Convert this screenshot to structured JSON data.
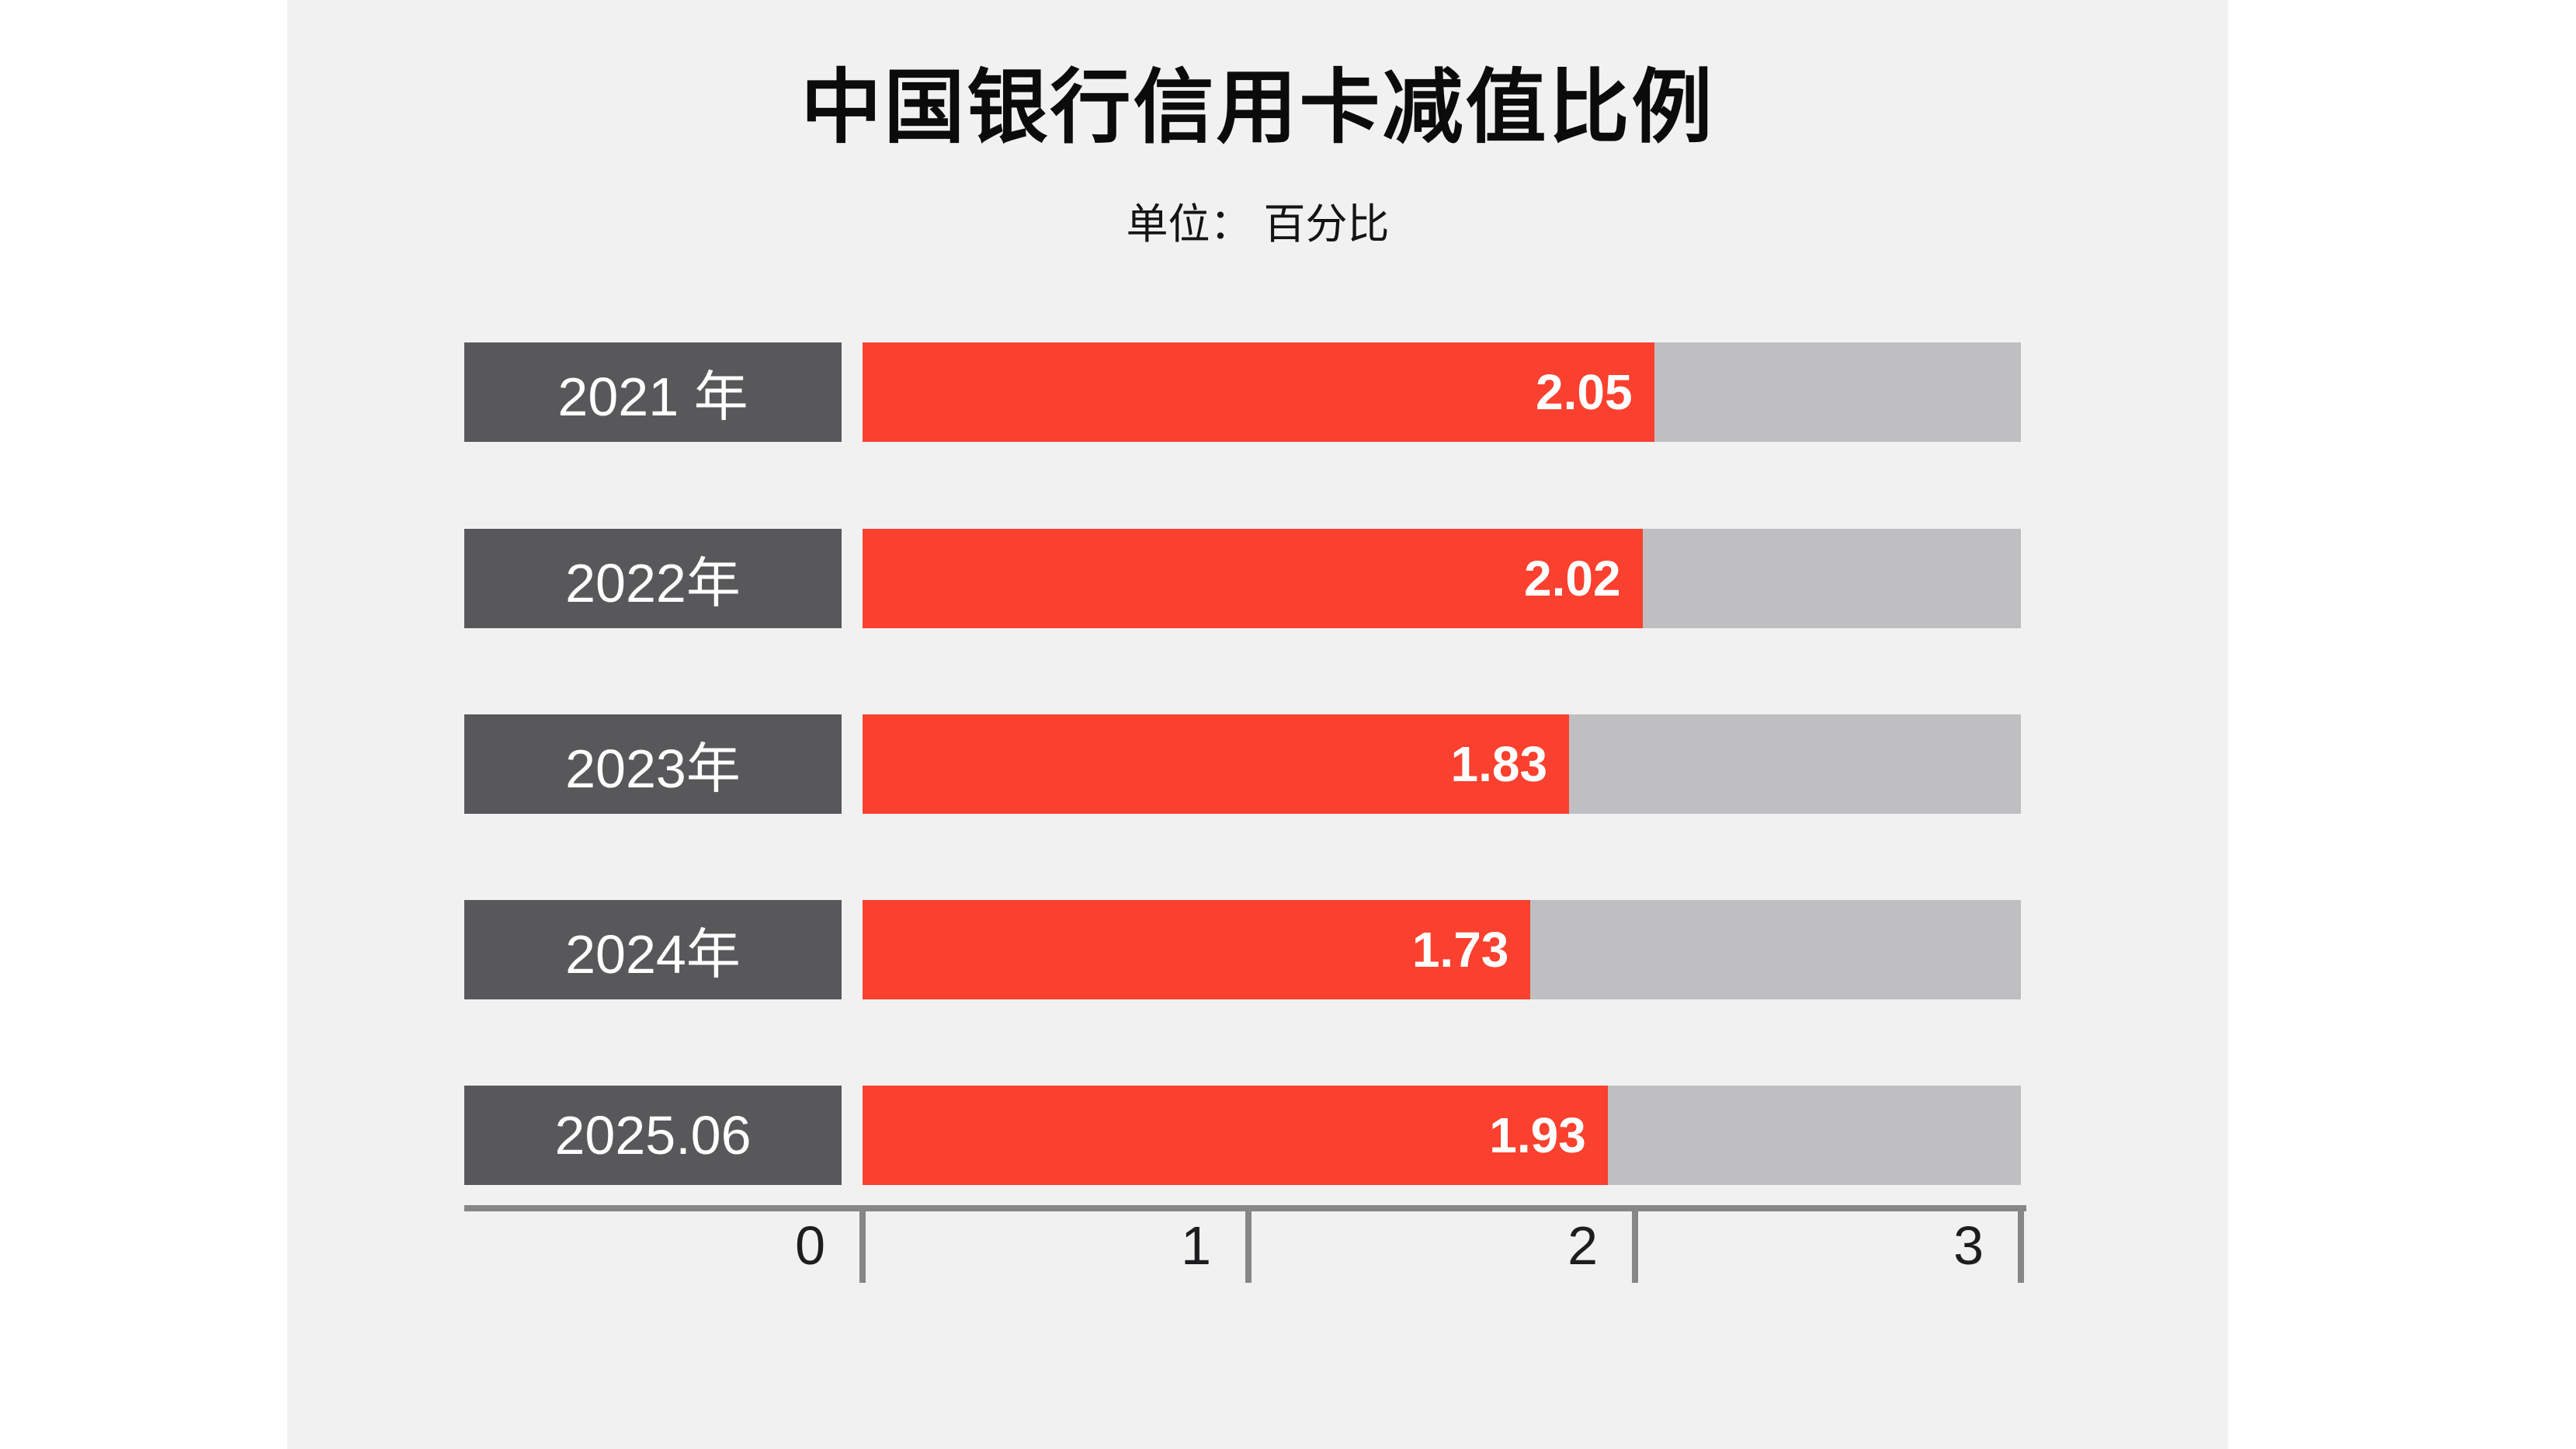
{
  "header": {
    "title": "中国银行信用卡减值比例",
    "subtitle": "单位： 百分比"
  },
  "chart_data": {
    "type": "bar",
    "orientation": "horizontal",
    "title": "中国银行信用卡减值比例",
    "unit_label": "单位： 百分比",
    "categories": [
      "2021 年",
      "2022年",
      "2023年",
      "2024年",
      "2025.06"
    ],
    "values": [
      2.05,
      2.02,
      1.83,
      1.73,
      1.93
    ],
    "value_labels": [
      "2.05",
      "2.02",
      "1.83",
      "1.73",
      "1.93"
    ],
    "xlim": [
      0,
      3
    ],
    "x_ticks": [
      0,
      1,
      2,
      3
    ],
    "x_tick_labels": [
      "0",
      "1",
      "2",
      "3"
    ],
    "legend": "none",
    "grid": "off",
    "colors": {
      "bar_fill": "#fa402e",
      "bar_track": "#bfbfc1",
      "category_box": "#58585a",
      "background": "#f1f1f2",
      "page_margin": "#ffffff",
      "axis": "#868686",
      "title_text": "#0b0b0b",
      "bar_value_text": "#ffffff",
      "category_text": "#ffffff",
      "tick_text": "#1d1d1f"
    }
  }
}
